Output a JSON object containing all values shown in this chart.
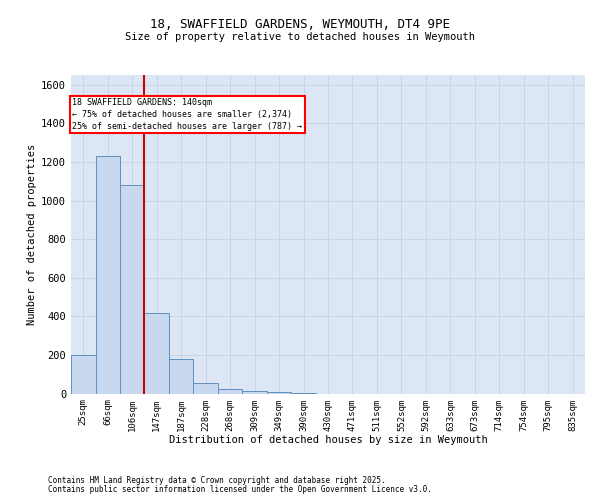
{
  "title_line1": "18, SWAFFIELD GARDENS, WEYMOUTH, DT4 9PE",
  "title_line2": "Size of property relative to detached houses in Weymouth",
  "xlabel": "Distribution of detached houses by size in Weymouth",
  "ylabel": "Number of detached properties",
  "annotation_line1": "18 SWAFFIELD GARDENS: 140sqm",
  "annotation_line2": "← 75% of detached houses are smaller (2,374)",
  "annotation_line3": "25% of semi-detached houses are larger (787) →",
  "categories": [
    "25sqm",
    "66sqm",
    "106sqm",
    "147sqm",
    "187sqm",
    "228sqm",
    "268sqm",
    "309sqm",
    "349sqm",
    "390sqm",
    "430sqm",
    "471sqm",
    "511sqm",
    "552sqm",
    "592sqm",
    "633sqm",
    "673sqm",
    "714sqm",
    "754sqm",
    "795sqm",
    "835sqm"
  ],
  "bar_values": [
    200,
    1230,
    1080,
    420,
    180,
    55,
    25,
    15,
    8,
    3,
    1,
    0,
    0,
    0,
    0,
    0,
    0,
    0,
    0,
    0,
    0
  ],
  "bar_color": "#c8d8ee",
  "bar_edge_color": "#6090c0",
  "vline_color": "#cc0000",
  "vline_x_index": 2.5,
  "ylim": [
    0,
    1650
  ],
  "yticks": [
    0,
    200,
    400,
    600,
    800,
    1000,
    1200,
    1400,
    1600
  ],
  "grid_color": "#c8d4e8",
  "background_color": "#dce6f4",
  "footnote_line1": "Contains HM Land Registry data © Crown copyright and database right 2025.",
  "footnote_line2": "Contains public sector information licensed under the Open Government Licence v3.0."
}
